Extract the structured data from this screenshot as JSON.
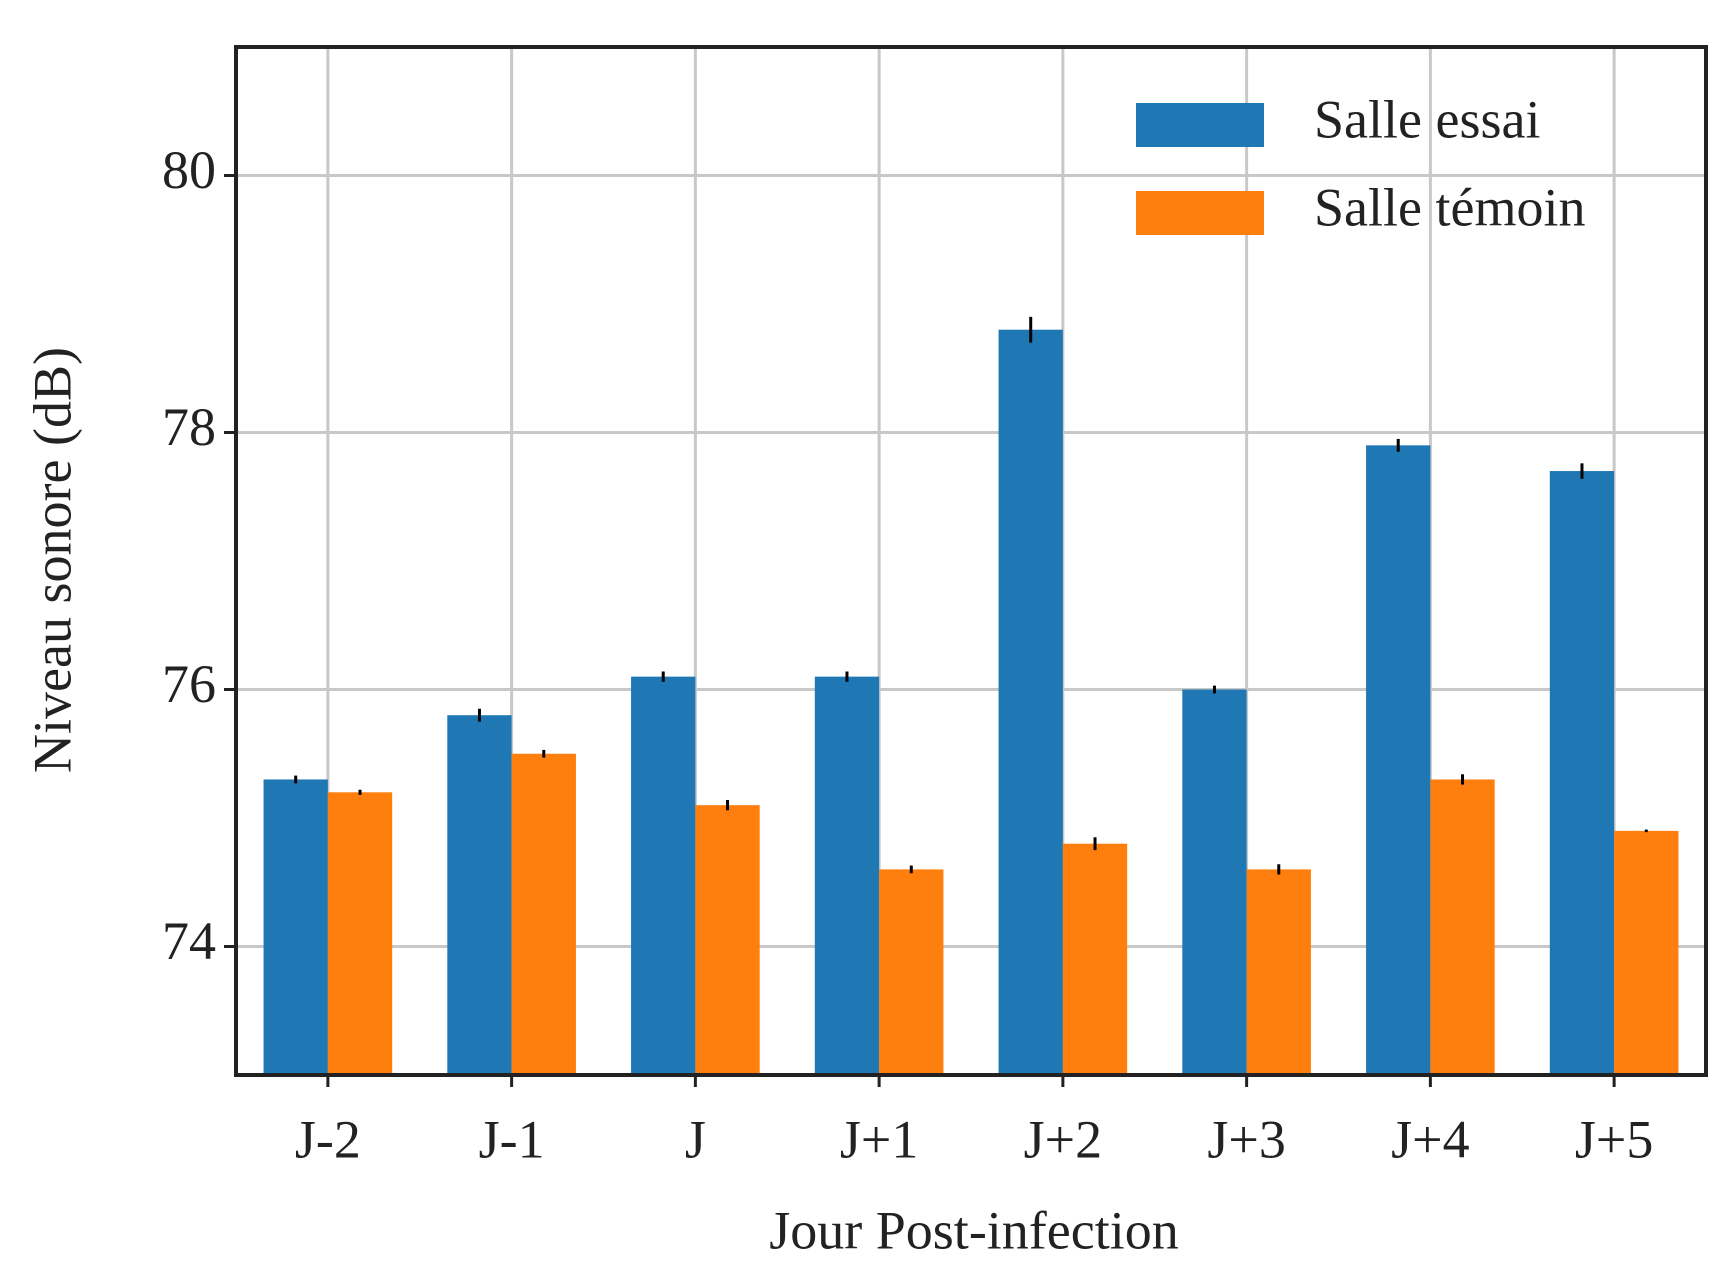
{
  "chart_data": {
    "type": "bar",
    "x_label": "Jour Post-infection",
    "y_label": "Niveau sonore (dB)",
    "categories": [
      "J-2",
      "J-1",
      "J",
      "J+1",
      "J+2",
      "J+3",
      "J+4",
      "J+5"
    ],
    "series": [
      {
        "name": "Salle essai",
        "color": "#1f77b4",
        "values": [
          75.3,
          75.8,
          76.1,
          76.1,
          78.8,
          76.0,
          77.9,
          77.7
        ],
        "errors": [
          0.03,
          0.05,
          0.04,
          0.04,
          0.1,
          0.03,
          0.05,
          0.06
        ]
      },
      {
        "name": "Salle témoin",
        "color": "#ff7f0e",
        "values": [
          75.2,
          75.5,
          75.1,
          74.6,
          74.8,
          74.6,
          75.3,
          74.9
        ],
        "errors": [
          0.02,
          0.03,
          0.04,
          0.03,
          0.05,
          0.04,
          0.04,
          0.01
        ]
      }
    ],
    "ylim": [
      73,
      81
    ],
    "yticks": [
      74,
      76,
      78,
      80
    ],
    "grid": true,
    "legend": "upper right"
  }
}
